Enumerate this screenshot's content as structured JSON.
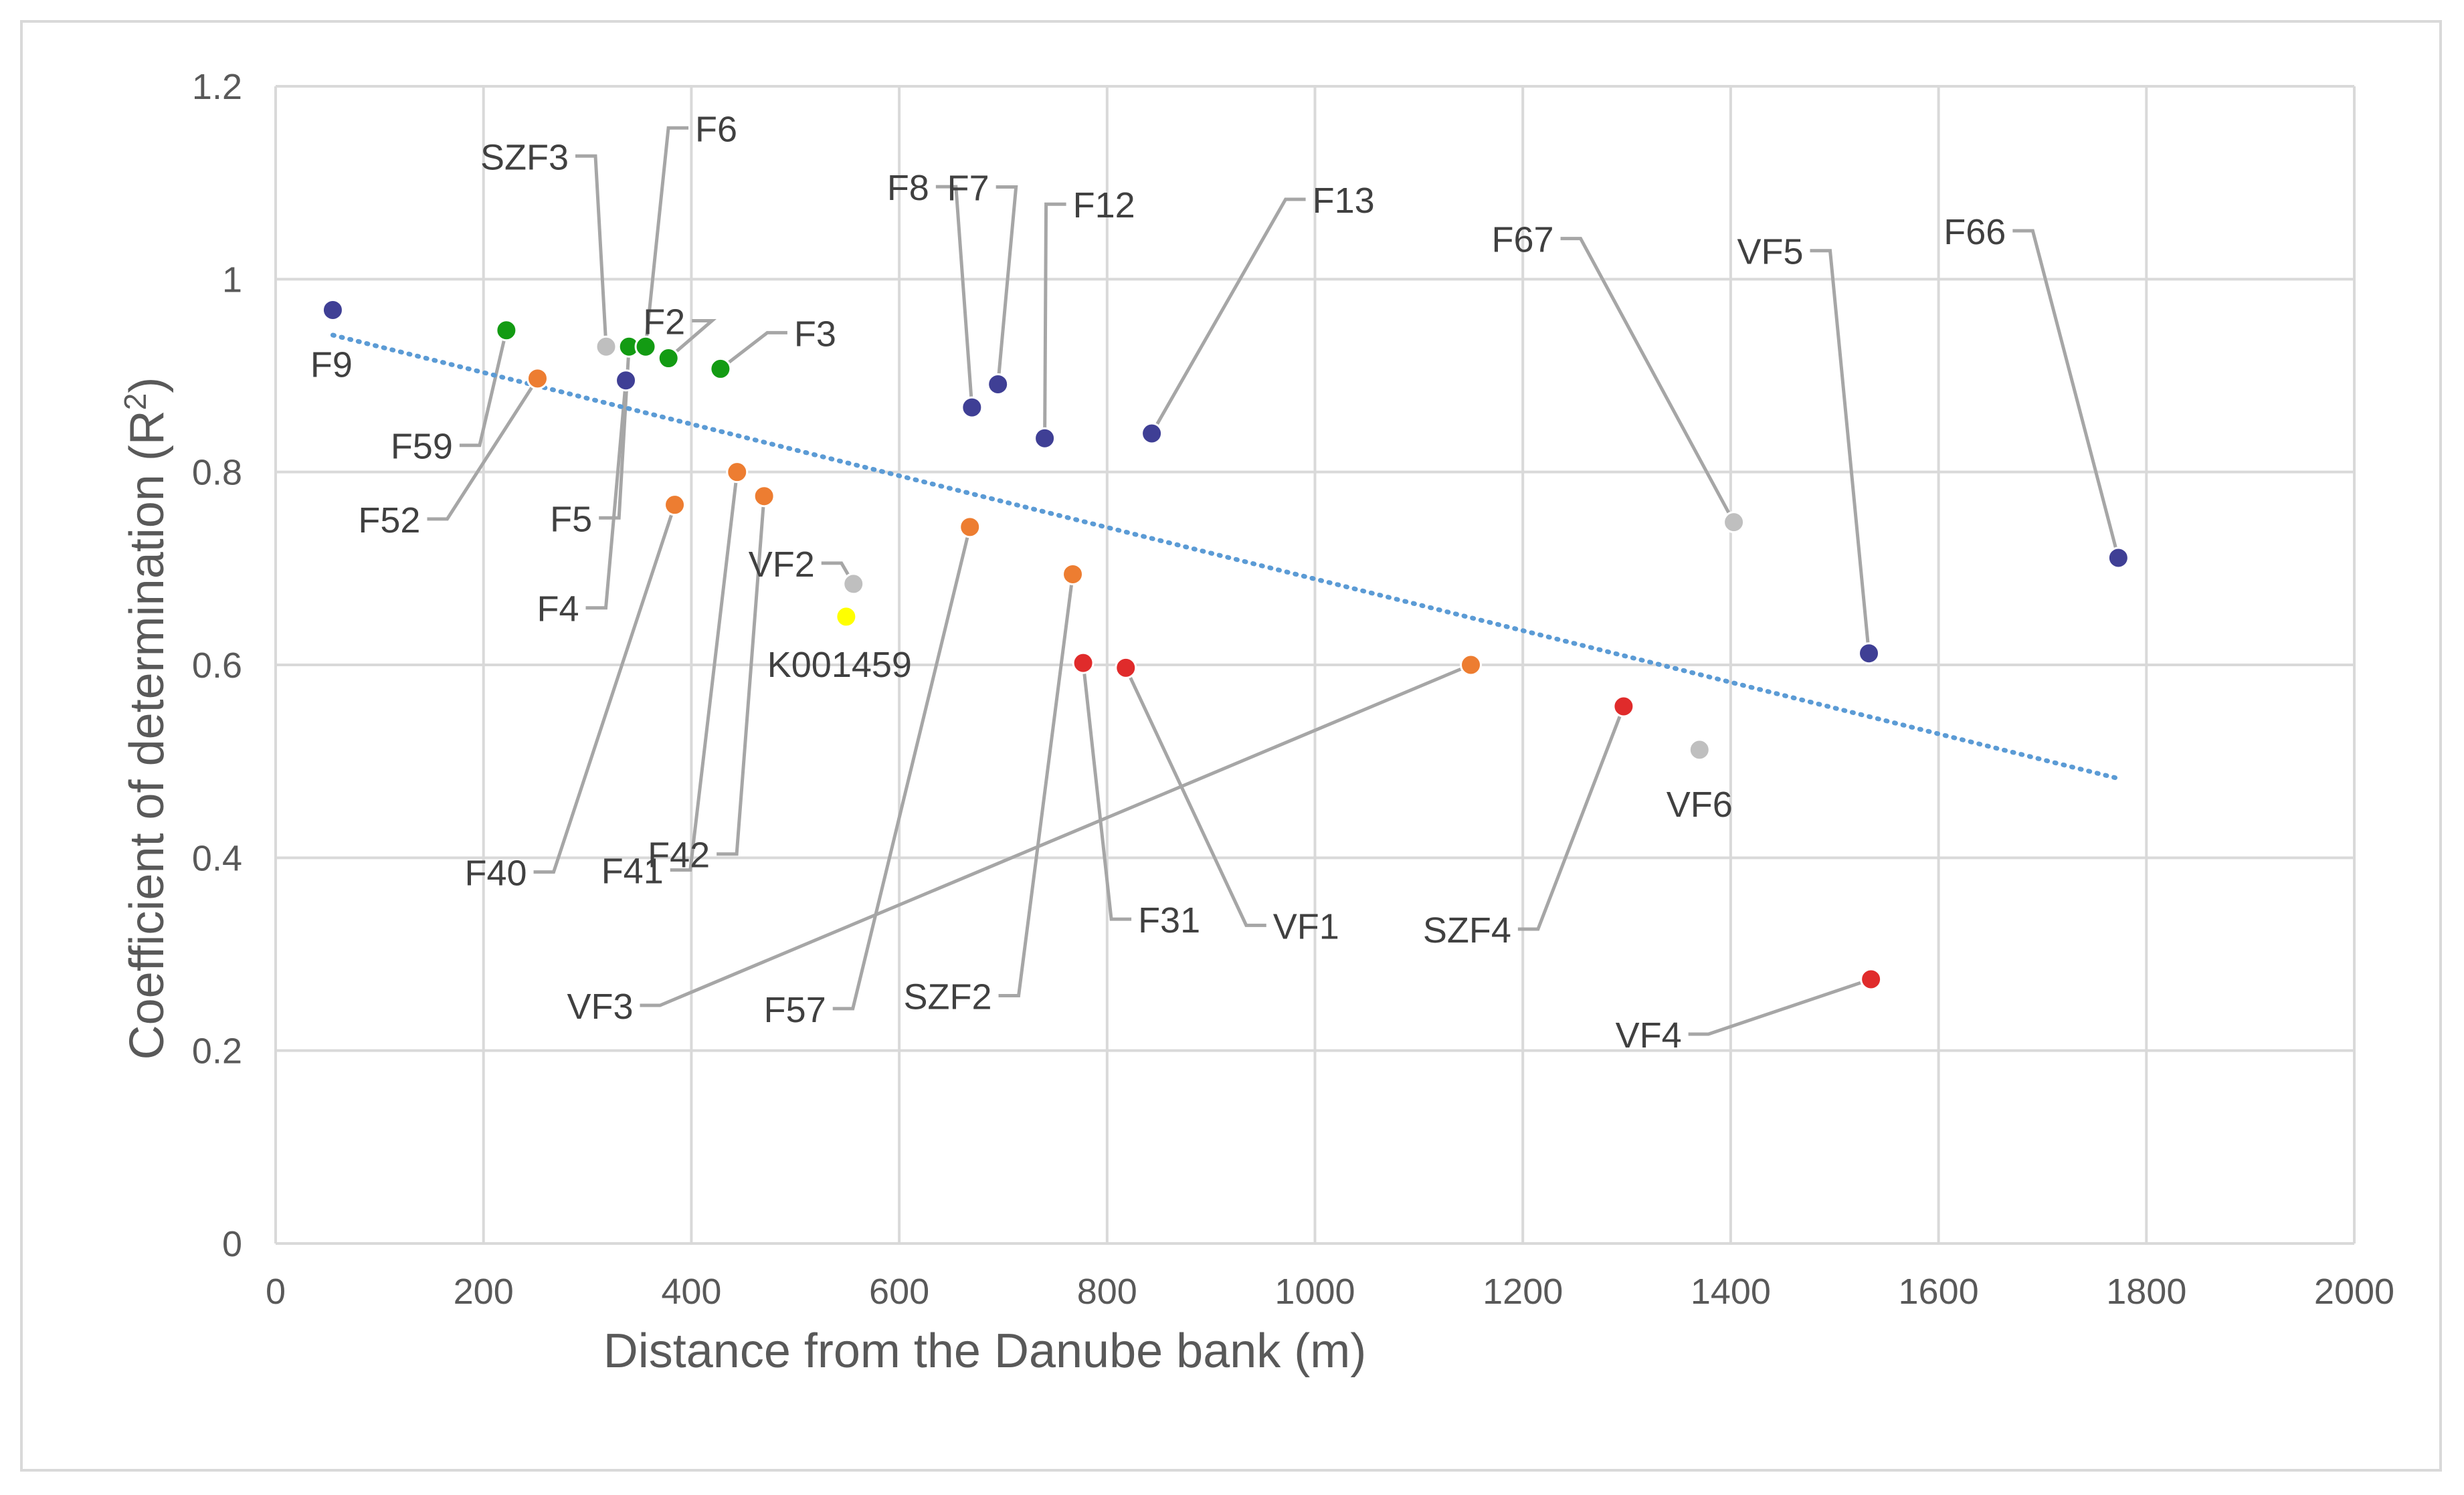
{
  "chart_data": {
    "type": "scatter",
    "xlabel": "Distance from the Danube bank (m)",
    "ylabel_main": "Coefficient of determination (R",
    "ylabel_sup": "2",
    "ylabel_tail": ")",
    "xlim": [
      0,
      2000
    ],
    "ylim": [
      0,
      1.2
    ],
    "xticks": [
      0,
      200,
      400,
      600,
      800,
      1000,
      1200,
      1400,
      1600,
      1800,
      2000
    ],
    "yticks": [
      0,
      0.2,
      0.4,
      0.6,
      0.8,
      1,
      1.2
    ],
    "ytick_labels": [
      "0",
      "0.2",
      "0.4",
      "0.6",
      "0.8",
      "1",
      "1.2"
    ],
    "grid": true,
    "colors": {
      "blue": "#3f3f95",
      "green": "#139b13",
      "orange": "#ed7d31",
      "red": "#e02b2b",
      "gray": "#bfbfbf",
      "yellow": "#ffff00",
      "trend": "#5b9bd5",
      "grid": "#d9d9d9",
      "leader": "#a6a6a6",
      "axis_text": "#595959",
      "label_text": "#404040"
    },
    "trendline": {
      "style": "dotted",
      "x": [
        55,
        1770
      ],
      "y": [
        0.942,
        0.483
      ]
    },
    "points": [
      {
        "label": "F9",
        "x": 55,
        "y": 0.968,
        "color": "blue"
      },
      {
        "label": "F59",
        "x": 222,
        "y": 0.947,
        "color": "green"
      },
      {
        "label": "F52",
        "x": 252,
        "y": 0.897,
        "color": "orange"
      },
      {
        "label": "SZF3",
        "x": 318,
        "y": 0.93,
        "color": "gray"
      },
      {
        "label": "F4",
        "x": 337,
        "y": 0.895,
        "color": "blue"
      },
      {
        "label": "F5",
        "x": 340,
        "y": 0.93,
        "color": "green"
      },
      {
        "label": "F6",
        "x": 356,
        "y": 0.93,
        "color": "green"
      },
      {
        "label": "F2",
        "x": 378,
        "y": 0.918,
        "color": "green"
      },
      {
        "label": "F40",
        "x": 384,
        "y": 0.766,
        "color": "orange"
      },
      {
        "label": "F3",
        "x": 428,
        "y": 0.907,
        "color": "green"
      },
      {
        "label": "F41",
        "x": 444,
        "y": 0.8,
        "color": "orange"
      },
      {
        "label": "F42",
        "x": 470,
        "y": 0.775,
        "color": "orange"
      },
      {
        "label": "K001459",
        "x": 549,
        "y": 0.65,
        "color": "yellow"
      },
      {
        "label": "VF2",
        "x": 556,
        "y": 0.684,
        "color": "gray"
      },
      {
        "label": "F57",
        "x": 668,
        "y": 0.743,
        "color": "orange"
      },
      {
        "label": "F8",
        "x": 670,
        "y": 0.867,
        "color": "blue"
      },
      {
        "label": "F7",
        "x": 695,
        "y": 0.891,
        "color": "blue"
      },
      {
        "label": "F12",
        "x": 740,
        "y": 0.835,
        "color": "blue"
      },
      {
        "label": "SZF2",
        "x": 767,
        "y": 0.694,
        "color": "orange"
      },
      {
        "label": "F31",
        "x": 777,
        "y": 0.602,
        "color": "red"
      },
      {
        "label": "VF1",
        "x": 818,
        "y": 0.597,
        "color": "red"
      },
      {
        "label": "F13",
        "x": 843,
        "y": 0.84,
        "color": "blue"
      },
      {
        "label": "VF3",
        "x": 1150,
        "y": 0.6,
        "color": "orange"
      },
      {
        "label": "SZF4",
        "x": 1297,
        "y": 0.557,
        "color": "red"
      },
      {
        "label": "VF6",
        "x": 1370,
        "y": 0.512,
        "color": "gray"
      },
      {
        "label": "F67",
        "x": 1403,
        "y": 0.748,
        "color": "gray"
      },
      {
        "label": "VF5",
        "x": 1533,
        "y": 0.612,
        "color": "blue"
      },
      {
        "label": "VF4",
        "x": 1535,
        "y": 0.274,
        "color": "red"
      },
      {
        "label": "F66",
        "x": 1773,
        "y": 0.711,
        "color": "blue"
      }
    ]
  }
}
